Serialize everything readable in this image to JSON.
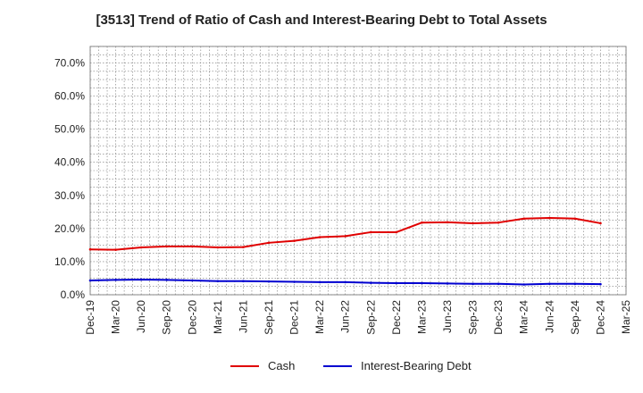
{
  "chart_data": {
    "type": "line",
    "title": "[3513]  Trend of Ratio of Cash and Interest-Bearing Debt to Total Assets",
    "xlabel": "",
    "ylabel": "",
    "categories": [
      "Dec-19",
      "Mar-20",
      "Jun-20",
      "Sep-20",
      "Dec-20",
      "Mar-21",
      "Jun-21",
      "Sep-21",
      "Dec-21",
      "Mar-22",
      "Jun-22",
      "Sep-22",
      "Dec-22",
      "Mar-23",
      "Jun-23",
      "Sep-23",
      "Dec-23",
      "Mar-24",
      "Jun-24",
      "Sep-24",
      "Dec-24",
      "Mar-25"
    ],
    "y_tick_labels": [
      "0.0%",
      "10.0%",
      "20.0%",
      "30.0%",
      "40.0%",
      "50.0%",
      "60.0%",
      "70.0%"
    ],
    "ylim": [
      0,
      75
    ],
    "grid": true,
    "legend_position": "bottom",
    "series": [
      {
        "name": "Cash",
        "color": "#e00000",
        "values": [
          13.7,
          13.6,
          14.3,
          14.6,
          14.6,
          14.3,
          14.4,
          15.7,
          16.3,
          17.4,
          17.7,
          18.9,
          18.9,
          21.8,
          21.9,
          21.6,
          21.8,
          23.0,
          23.2,
          23.0,
          21.6,
          null
        ]
      },
      {
        "name": "Interest-Bearing Debt",
        "color": "#0000d0",
        "values": [
          4.3,
          4.5,
          4.6,
          4.5,
          4.3,
          4.1,
          4.1,
          4.0,
          3.9,
          3.8,
          3.8,
          3.6,
          3.5,
          3.5,
          3.4,
          3.3,
          3.3,
          3.1,
          3.3,
          3.3,
          3.2,
          null
        ]
      }
    ]
  }
}
